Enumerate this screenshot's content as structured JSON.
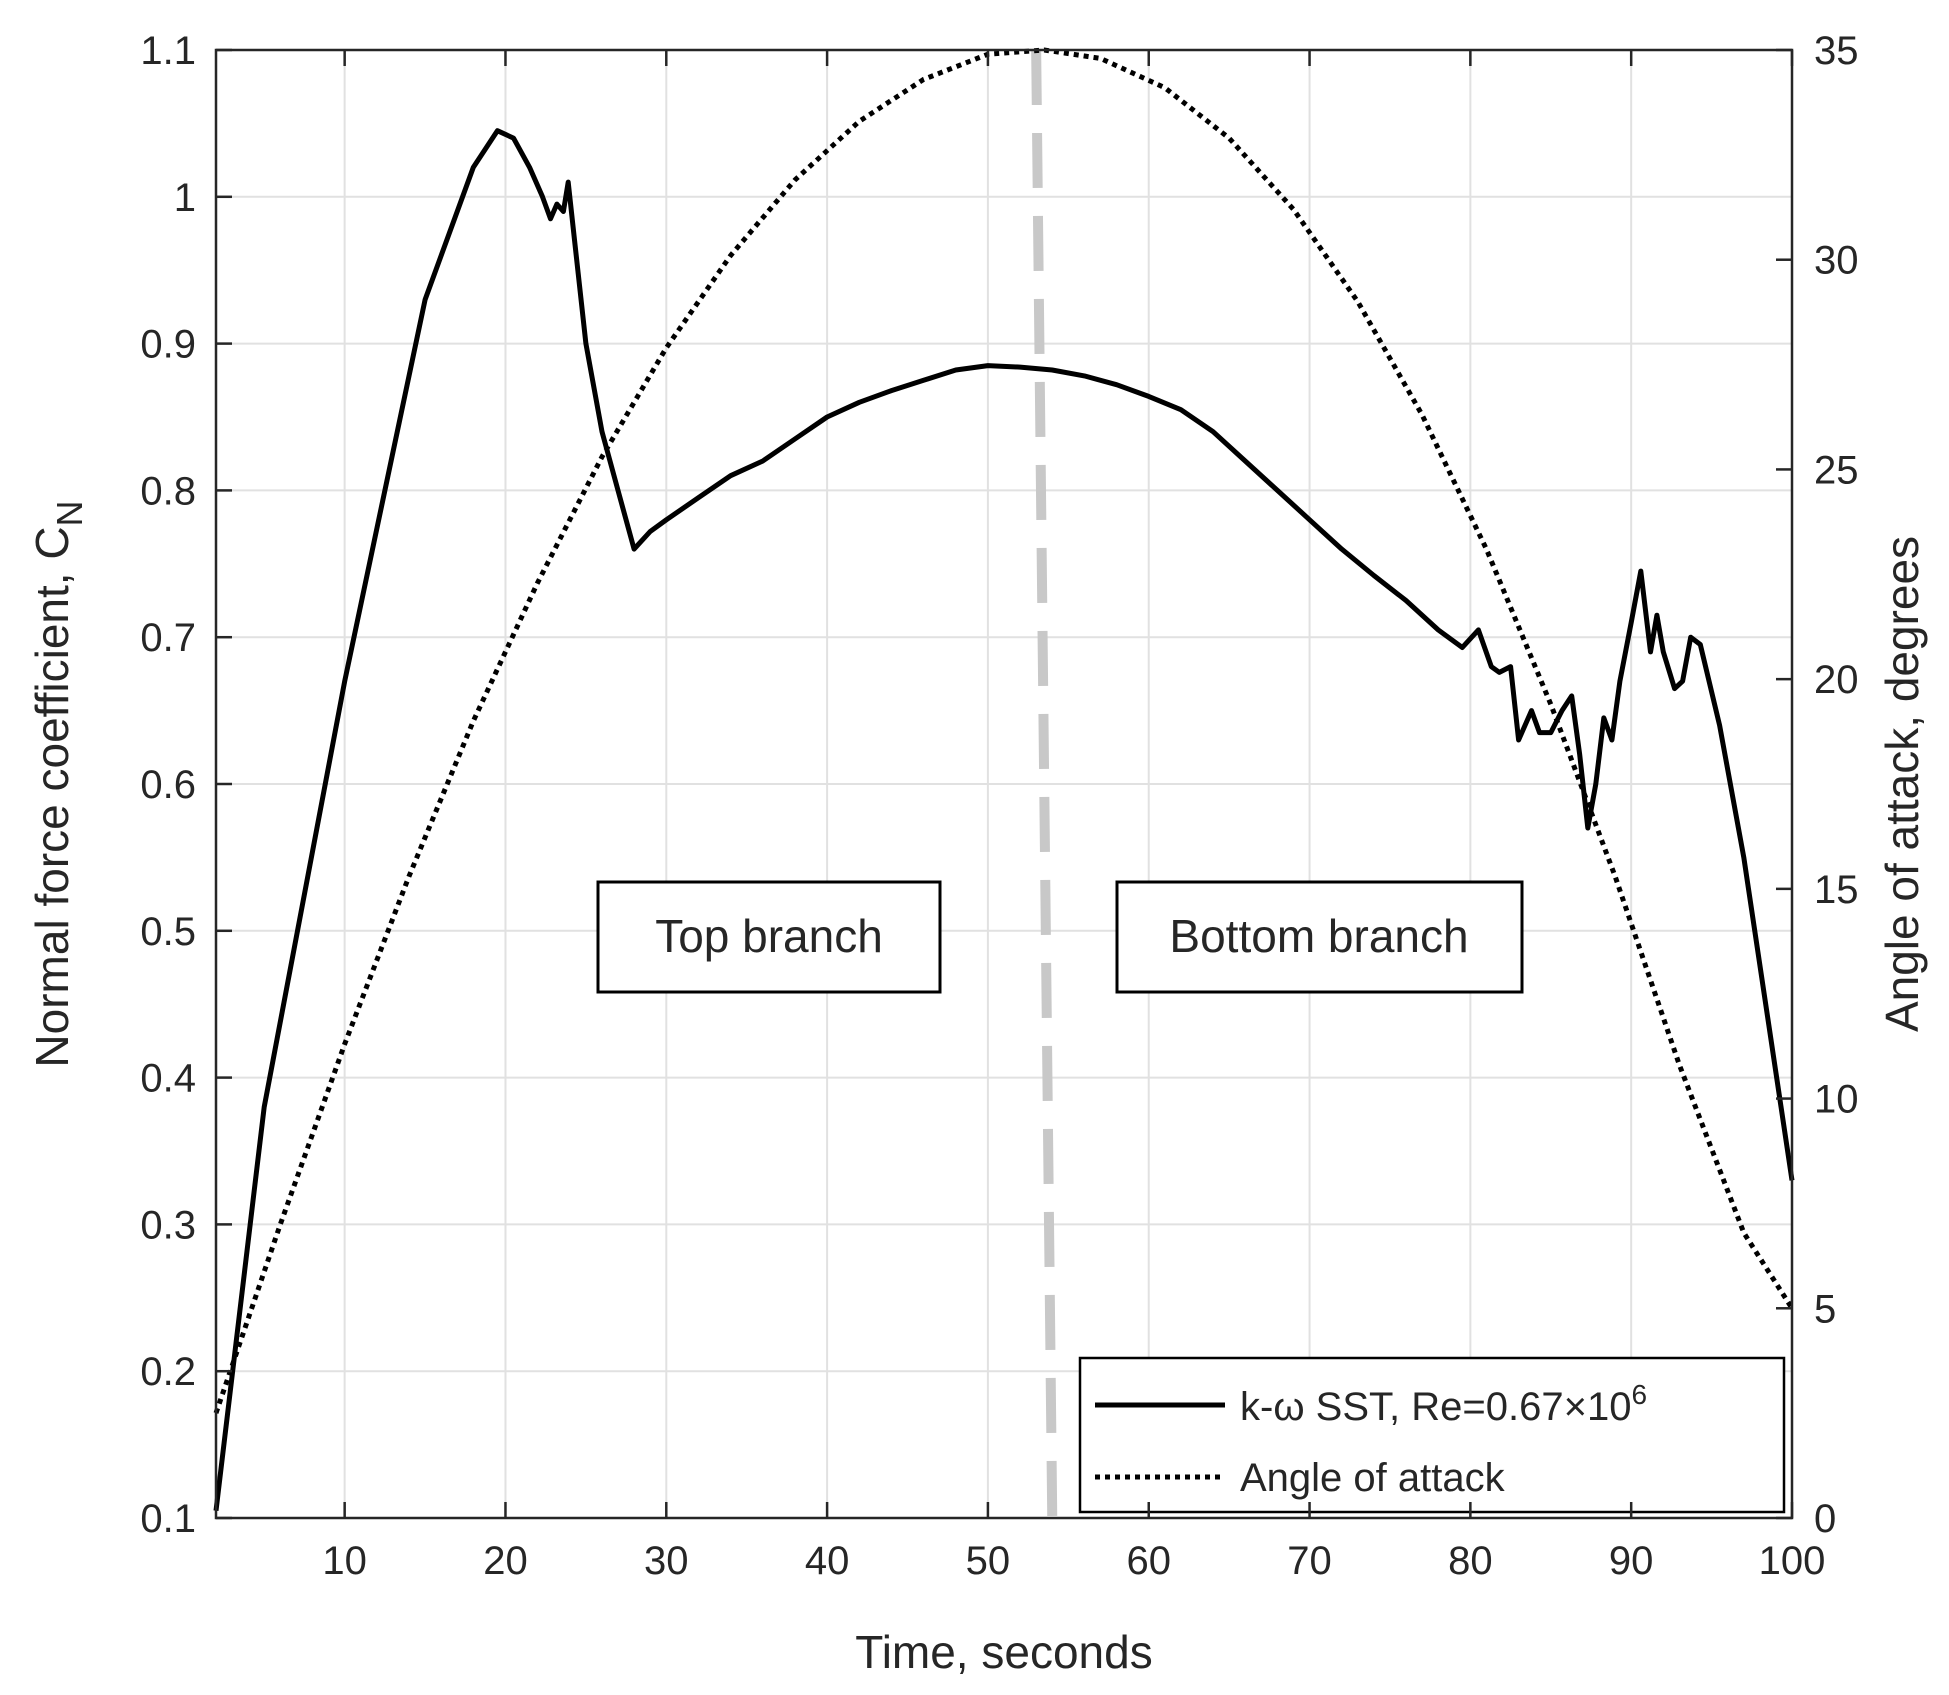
{
  "chart_data": {
    "type": "line",
    "xlabel": "Time, seconds",
    "ylabel_left": "Normal force coefficient, C",
    "ylabel_left_sub": "N",
    "ylabel_right": "Angle of attack, degrees",
    "xlim": [
      2,
      100
    ],
    "ylim_left": [
      0.1,
      1.1
    ],
    "ylim_right": [
      0,
      35
    ],
    "grid": true,
    "legend_position": "bottom-right",
    "x_ticks": [
      10,
      20,
      30,
      40,
      50,
      60,
      70,
      80,
      90,
      100
    ],
    "y_left_ticks": [
      "0.1",
      "0.2",
      "0.3",
      "0.4",
      "0.5",
      "0.6",
      "0.7",
      "0.8",
      "0.9",
      "1",
      "1.1"
    ],
    "y_right_ticks": [
      "0",
      "5",
      "10",
      "15",
      "20",
      "25",
      "30",
      "35"
    ],
    "series": [
      {
        "name": "k-ω SST, Re=0.67×10",
        "name_sup": "6",
        "axis": "left",
        "style": "solid",
        "color": "#000000",
        "x": [
          2,
          5,
          10,
          15,
          18,
          19.5,
          20.5,
          21.5,
          22.3,
          22.8,
          23.2,
          23.6,
          23.9,
          24.3,
          25,
          26,
          27,
          28,
          29,
          30,
          32,
          34,
          36,
          38,
          40,
          42,
          44,
          46,
          48,
          50,
          52,
          54,
          56,
          58,
          60,
          62,
          64,
          66,
          68,
          70,
          72,
          74,
          76,
          78,
          79.5,
          80.5,
          81.3,
          81.8,
          82.5,
          83,
          83.8,
          84.3,
          85,
          85.7,
          86.3,
          86.8,
          87.3,
          87.8,
          88.3,
          88.8,
          89.3,
          90,
          90.6,
          91.2,
          91.6,
          92,
          92.7,
          93.2,
          93.7,
          94.3,
          95.5,
          97,
          98.5,
          100
        ],
        "values": [
          0.105,
          0.38,
          0.67,
          0.93,
          1.02,
          1.045,
          1.04,
          1.02,
          1.0,
          0.985,
          0.995,
          0.99,
          1.01,
          0.97,
          0.9,
          0.84,
          0.8,
          0.76,
          0.772,
          0.78,
          0.795,
          0.81,
          0.82,
          0.835,
          0.85,
          0.86,
          0.868,
          0.875,
          0.882,
          0.885,
          0.884,
          0.882,
          0.878,
          0.872,
          0.864,
          0.855,
          0.84,
          0.82,
          0.8,
          0.78,
          0.76,
          0.742,
          0.725,
          0.705,
          0.693,
          0.705,
          0.68,
          0.676,
          0.68,
          0.63,
          0.65,
          0.635,
          0.635,
          0.65,
          0.66,
          0.62,
          0.57,
          0.6,
          0.645,
          0.63,
          0.67,
          0.71,
          0.745,
          0.69,
          0.715,
          0.69,
          0.665,
          0.67,
          0.7,
          0.695,
          0.64,
          0.55,
          0.44,
          0.33
        ]
      },
      {
        "name": "Angle of attack",
        "axis": "right",
        "style": "dotted",
        "color": "#000000",
        "x": [
          2,
          6,
          10,
          14,
          18,
          22,
          26,
          30,
          34,
          38,
          42,
          46,
          50,
          53.5,
          57,
          61,
          65,
          69,
          73,
          77,
          81,
          85,
          89,
          93,
          97,
          100
        ],
        "values": [
          2.5,
          7.0,
          11.3,
          15.3,
          19.0,
          22.3,
          25.3,
          27.9,
          30.1,
          31.9,
          33.3,
          34.3,
          34.9,
          35.0,
          34.8,
          34.1,
          32.9,
          31.2,
          29.0,
          26.3,
          23.1,
          19.4,
          15.3,
          10.8,
          6.8,
          5.0
        ]
      }
    ],
    "vertical_marker": {
      "x_top": 53.0,
      "x_bottom": 54.0,
      "color": "#c8c8c8",
      "style": "dashed"
    },
    "annotations": [
      {
        "text": "Top branch",
        "x": 35.5,
        "y": 0.5
      },
      {
        "text": "Bottom branch",
        "x": 67.5,
        "y": 0.5
      }
    ]
  }
}
